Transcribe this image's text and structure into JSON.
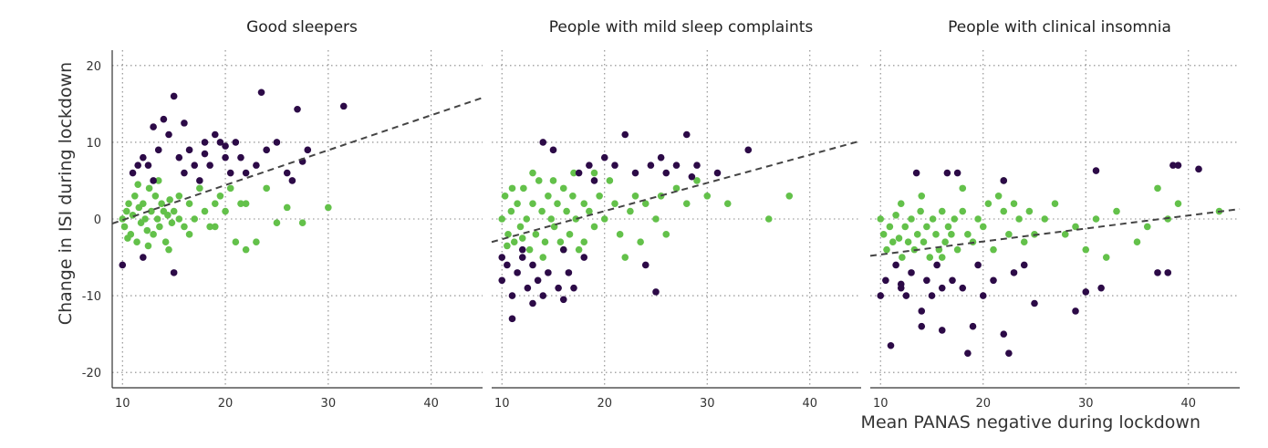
{
  "chart_data": {
    "type": "scatter",
    "ylabel": "Change in ISI during lockdown",
    "xlabel": "Mean PANAS negative during lockdown",
    "xlim": [
      9,
      45
    ],
    "ylim": [
      -22,
      22
    ],
    "x_ticks": [
      10,
      20,
      30,
      40
    ],
    "y_ticks": [
      20,
      10,
      0,
      -10,
      -20
    ],
    "grid": true,
    "colors": {
      "dark": "#2c0a47",
      "green": "#63c14a",
      "trend": "#444444"
    },
    "panels": [
      {
        "title": "Good sleepers",
        "trend": {
          "x": [
            9,
            45
          ],
          "y": [
            -0.6,
            15.8
          ]
        },
        "dark_points": [
          [
            10,
            -6
          ],
          [
            11,
            6
          ],
          [
            11.5,
            7
          ],
          [
            12,
            8
          ],
          [
            13,
            12
          ],
          [
            13.5,
            9
          ],
          [
            14,
            13
          ],
          [
            14.5,
            11
          ],
          [
            15,
            16
          ],
          [
            15.5,
            8
          ],
          [
            16,
            12.5
          ],
          [
            16.5,
            9
          ],
          [
            17,
            7
          ],
          [
            17.5,
            5
          ],
          [
            18,
            10
          ],
          [
            18.5,
            7
          ],
          [
            19,
            11
          ],
          [
            19.5,
            10
          ],
          [
            20,
            8
          ],
          [
            20.5,
            6
          ],
          [
            21,
            10
          ],
          [
            21.5,
            8
          ],
          [
            22,
            6
          ],
          [
            23,
            7
          ],
          [
            23.5,
            16.5
          ],
          [
            24,
            9
          ],
          [
            25,
            10
          ],
          [
            26,
            6
          ],
          [
            26.5,
            5
          ],
          [
            27,
            14.3
          ],
          [
            27.5,
            7.5
          ],
          [
            28,
            9
          ],
          [
            31.5,
            14.7
          ],
          [
            12,
            -5
          ],
          [
            15,
            -7
          ],
          [
            13,
            5
          ],
          [
            16,
            6
          ],
          [
            18,
            8.5
          ],
          [
            20,
            9.5
          ],
          [
            12.5,
            7
          ]
        ],
        "green_points": [
          [
            10,
            0
          ],
          [
            10.2,
            -1
          ],
          [
            10.4,
            1
          ],
          [
            10.6,
            2
          ],
          [
            10.8,
            -2
          ],
          [
            11,
            0.5
          ],
          [
            11.2,
            3
          ],
          [
            11.4,
            -3
          ],
          [
            11.6,
            1.5
          ],
          [
            11.8,
            -0.5
          ],
          [
            12,
            2
          ],
          [
            12.2,
            0
          ],
          [
            12.4,
            -1.5
          ],
          [
            12.6,
            4
          ],
          [
            12.8,
            1
          ],
          [
            13,
            -2
          ],
          [
            13.2,
            3
          ],
          [
            13.4,
            0
          ],
          [
            13.6,
            -1
          ],
          [
            13.8,
            2
          ],
          [
            14,
            1
          ],
          [
            14.2,
            -3
          ],
          [
            14.4,
            0.5
          ],
          [
            14.6,
            2.5
          ],
          [
            14.8,
            -0.5
          ],
          [
            15,
            1
          ],
          [
            15.5,
            3
          ],
          [
            16,
            -1
          ],
          [
            16.5,
            2
          ],
          [
            17,
            0
          ],
          [
            17.5,
            4
          ],
          [
            18,
            1
          ],
          [
            18.5,
            -1
          ],
          [
            19,
            2
          ],
          [
            19.5,
            3
          ],
          [
            20,
            1
          ],
          [
            21,
            -3
          ],
          [
            21.5,
            2
          ],
          [
            22,
            -4
          ],
          [
            23,
            -3
          ],
          [
            24,
            4
          ],
          [
            25,
            -0.5
          ],
          [
            26,
            1.5
          ],
          [
            27.5,
            -0.5
          ],
          [
            30,
            1.5
          ],
          [
            10.5,
            -2.5
          ],
          [
            11.5,
            4.5
          ],
          [
            12.5,
            -3.5
          ],
          [
            13.5,
            5
          ],
          [
            14.5,
            -4
          ],
          [
            15.5,
            0
          ],
          [
            16.5,
            -2
          ],
          [
            19,
            -1
          ],
          [
            20.5,
            4
          ],
          [
            22,
            2
          ]
        ]
      },
      {
        "title": "People with mild sleep complaints",
        "trend": {
          "x": [
            9,
            45
          ],
          "y": [
            -3,
            10.2
          ]
        },
        "dark_points": [
          [
            10,
            -5
          ],
          [
            10,
            -8
          ],
          [
            10.5,
            -6
          ],
          [
            11,
            -10
          ],
          [
            11,
            -13
          ],
          [
            11.5,
            -7
          ],
          [
            12,
            -5
          ],
          [
            12.5,
            -9
          ],
          [
            13,
            -6
          ],
          [
            13.5,
            -8
          ],
          [
            14,
            -10
          ],
          [
            14,
            10
          ],
          [
            14.5,
            -7
          ],
          [
            15,
            9
          ],
          [
            15.5,
            -9
          ],
          [
            16,
            -10.5
          ],
          [
            16.5,
            -7
          ],
          [
            17,
            -9
          ],
          [
            17.5,
            6
          ],
          [
            18,
            -5
          ],
          [
            18.5,
            7
          ],
          [
            19,
            5
          ],
          [
            20,
            8
          ],
          [
            21,
            7
          ],
          [
            22,
            11
          ],
          [
            23,
            6
          ],
          [
            24,
            -6
          ],
          [
            24.5,
            7
          ],
          [
            25,
            -9.5
          ],
          [
            25.5,
            8
          ],
          [
            26,
            6
          ],
          [
            27,
            7
          ],
          [
            28,
            11
          ],
          [
            28.5,
            5.5
          ],
          [
            29,
            7
          ],
          [
            31,
            6
          ],
          [
            34,
            9
          ],
          [
            12,
            -4
          ],
          [
            13,
            -11
          ],
          [
            16,
            -4
          ]
        ],
        "green_points": [
          [
            10,
            0
          ],
          [
            10.3,
            3
          ],
          [
            10.6,
            -2
          ],
          [
            10.9,
            1
          ],
          [
            11.2,
            -3
          ],
          [
            11.5,
            2
          ],
          [
            11.8,
            -1
          ],
          [
            12.1,
            4
          ],
          [
            12.4,
            0
          ],
          [
            12.7,
            -4
          ],
          [
            13,
            2
          ],
          [
            13.3,
            -2
          ],
          [
            13.6,
            5
          ],
          [
            13.9,
            1
          ],
          [
            14.2,
            -3
          ],
          [
            14.5,
            3
          ],
          [
            14.8,
            0
          ],
          [
            15.1,
            -1
          ],
          [
            15.4,
            2
          ],
          [
            15.7,
            -3
          ],
          [
            16,
            4
          ],
          [
            16.3,
            1
          ],
          [
            16.6,
            -2
          ],
          [
            16.9,
            3
          ],
          [
            17.2,
            0
          ],
          [
            17.5,
            -4
          ],
          [
            18,
            2
          ],
          [
            18.5,
            1
          ],
          [
            19,
            -1
          ],
          [
            19.5,
            3
          ],
          [
            20,
            0
          ],
          [
            20.5,
            5
          ],
          [
            21,
            2
          ],
          [
            21.5,
            -2
          ],
          [
            22,
            -5
          ],
          [
            22.5,
            1
          ],
          [
            23,
            3
          ],
          [
            23.5,
            -3
          ],
          [
            24,
            2
          ],
          [
            25,
            0
          ],
          [
            25.5,
            3
          ],
          [
            26,
            -2
          ],
          [
            27,
            4
          ],
          [
            28,
            2
          ],
          [
            29,
            5
          ],
          [
            30,
            3
          ],
          [
            32,
            2
          ],
          [
            36,
            0
          ],
          [
            38,
            3
          ],
          [
            10.5,
            -3.5
          ],
          [
            11,
            4
          ],
          [
            12,
            -2.5
          ],
          [
            13,
            6
          ],
          [
            14,
            -5
          ],
          [
            15,
            5
          ],
          [
            16,
            -4
          ],
          [
            17,
            6
          ],
          [
            18,
            -3
          ],
          [
            19,
            6
          ]
        ]
      },
      {
        "title": "People with clinical insomnia",
        "trend": {
          "x": [
            9,
            45
          ],
          "y": [
            -4.8,
            1.3
          ]
        },
        "dark_points": [
          [
            10,
            -10
          ],
          [
            10.5,
            -8
          ],
          [
            11,
            -16.5
          ],
          [
            11.5,
            -6
          ],
          [
            12,
            -9
          ],
          [
            12.5,
            -10
          ],
          [
            13,
            -7
          ],
          [
            13.5,
            6
          ],
          [
            14,
            -14
          ],
          [
            14.5,
            -8
          ],
          [
            15,
            -10
          ],
          [
            15.5,
            -6
          ],
          [
            16,
            -14.5
          ],
          [
            16.5,
            6
          ],
          [
            17,
            -8
          ],
          [
            17.5,
            6
          ],
          [
            18,
            -9
          ],
          [
            18.5,
            -17.5
          ],
          [
            19,
            -14
          ],
          [
            19.5,
            -6
          ],
          [
            20,
            -10
          ],
          [
            21,
            -8
          ],
          [
            22,
            5
          ],
          [
            22,
            -15
          ],
          [
            22.5,
            -17.5
          ],
          [
            23,
            -7
          ],
          [
            24,
            -6
          ],
          [
            25,
            -11
          ],
          [
            29,
            -12
          ],
          [
            30,
            -9.5
          ],
          [
            31,
            6.3
          ],
          [
            31.5,
            -9
          ],
          [
            37,
            -7
          ],
          [
            38,
            -7
          ],
          [
            38.5,
            7
          ],
          [
            39,
            7
          ],
          [
            41,
            6.5
          ],
          [
            12,
            -8.5
          ],
          [
            14,
            -12
          ],
          [
            16,
            -9
          ]
        ],
        "green_points": [
          [
            10,
            0
          ],
          [
            10.3,
            -2
          ],
          [
            10.6,
            -4
          ],
          [
            10.9,
            -1
          ],
          [
            11.2,
            -3
          ],
          [
            11.5,
            0.5
          ],
          [
            11.8,
            -2.5
          ],
          [
            12.1,
            -5
          ],
          [
            12.4,
            -1
          ],
          [
            12.7,
            -3
          ],
          [
            13,
            0
          ],
          [
            13.3,
            -4
          ],
          [
            13.6,
            -2
          ],
          [
            13.9,
            1
          ],
          [
            14.2,
            -3
          ],
          [
            14.5,
            -1
          ],
          [
            14.8,
            -5
          ],
          [
            15.1,
            0
          ],
          [
            15.4,
            -2
          ],
          [
            15.7,
            -4
          ],
          [
            16,
            1
          ],
          [
            16.3,
            -3
          ],
          [
            16.6,
            -1
          ],
          [
            16.9,
            -2
          ],
          [
            17.2,
            0
          ],
          [
            17.5,
            -4
          ],
          [
            18,
            1
          ],
          [
            18.5,
            -2
          ],
          [
            19,
            -3
          ],
          [
            19.5,
            0
          ],
          [
            20,
            -1
          ],
          [
            20.5,
            2
          ],
          [
            21,
            -4
          ],
          [
            21.5,
            3
          ],
          [
            22,
            1
          ],
          [
            22.5,
            -2
          ],
          [
            23,
            2
          ],
          [
            23.5,
            0
          ],
          [
            24,
            -3
          ],
          [
            24.5,
            1
          ],
          [
            25,
            -2
          ],
          [
            26,
            0
          ],
          [
            27,
            2
          ],
          [
            28,
            -2
          ],
          [
            29,
            -1
          ],
          [
            30,
            -4
          ],
          [
            31,
            0
          ],
          [
            32,
            -5
          ],
          [
            33,
            1
          ],
          [
            35,
            -3
          ],
          [
            36,
            -1
          ],
          [
            37,
            4
          ],
          [
            38,
            0
          ],
          [
            39,
            2
          ],
          [
            43,
            1
          ],
          [
            12,
            2
          ],
          [
            14,
            3
          ],
          [
            16,
            -5
          ],
          [
            18,
            4
          ],
          [
            22,
            5
          ]
        ]
      }
    ]
  }
}
